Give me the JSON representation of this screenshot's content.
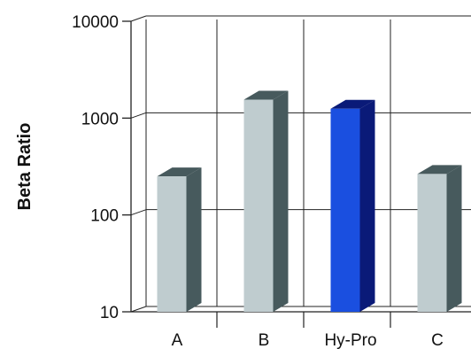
{
  "chart_data": {
    "type": "bar",
    "ylabel": "Beta Ratio",
    "yscale": "log",
    "ylim": [
      10,
      10000
    ],
    "yticks": [
      "10",
      "100",
      "1000",
      "10000"
    ],
    "categories": [
      "A",
      "B",
      "Hy-Pro",
      "C"
    ],
    "values": [
      250,
      1550,
      1250,
      265
    ],
    "grid": true,
    "bar_colors": [
      "#bfcccf",
      "#bfcccf",
      "#1a4fe0",
      "#bfcccf"
    ],
    "bar_side_colors": [
      "#475a5d",
      "#475a5d",
      "#0a1a78",
      "#475a5d"
    ]
  }
}
